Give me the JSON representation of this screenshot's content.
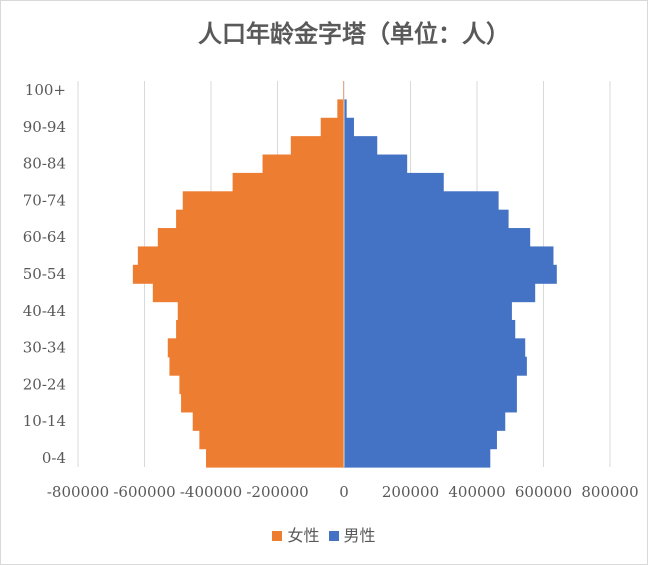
{
  "chart_data": {
    "type": "bar",
    "orientation": "horizontal",
    "title": "人口年龄金字塔（单位：人）",
    "categories": [
      "0-4",
      "5-9",
      "10-14",
      "15-19",
      "20-24",
      "25-29",
      "30-34",
      "35-39",
      "40-44",
      "45-49",
      "50-54",
      "55-59",
      "60-64",
      "65-69",
      "70-74",
      "75-79",
      "80-84",
      "85-89",
      "90-94",
      "95-99",
      "100+"
    ],
    "y_tick_labels": [
      "0-4",
      "10-14",
      "20-24",
      "30-34",
      "40-44",
      "50-54",
      "60-64",
      "70-74",
      "80-84",
      "90-94",
      "100+"
    ],
    "series": [
      {
        "name": "女性",
        "color": "#ed7d31",
        "values": [
          -415000,
          -435000,
          -455000,
          -490000,
          -495000,
          -525000,
          -530000,
          -505000,
          -500000,
          -575000,
          -635000,
          -620000,
          -560000,
          -505000,
          -485000,
          -335000,
          -245000,
          -160000,
          -70000,
          -20000,
          -3000
        ]
      },
      {
        "name": "男性",
        "color": "#4472c4",
        "values": [
          440000,
          460000,
          485000,
          520000,
          520000,
          550000,
          545000,
          515000,
          505000,
          575000,
          640000,
          630000,
          560000,
          495000,
          465000,
          300000,
          190000,
          100000,
          30000,
          8000,
          1000
        ]
      }
    ],
    "xlim": [
      -800000,
      800000
    ],
    "x_ticks": [
      -800000,
      -600000,
      -400000,
      -200000,
      0,
      200000,
      400000,
      600000,
      800000
    ],
    "x_tick_labels": [
      "-800000",
      "-600000",
      "-400000",
      "-200000",
      "0",
      "200000",
      "400000",
      "600000",
      "800000"
    ],
    "grid": true,
    "legend_position": "bottom"
  }
}
